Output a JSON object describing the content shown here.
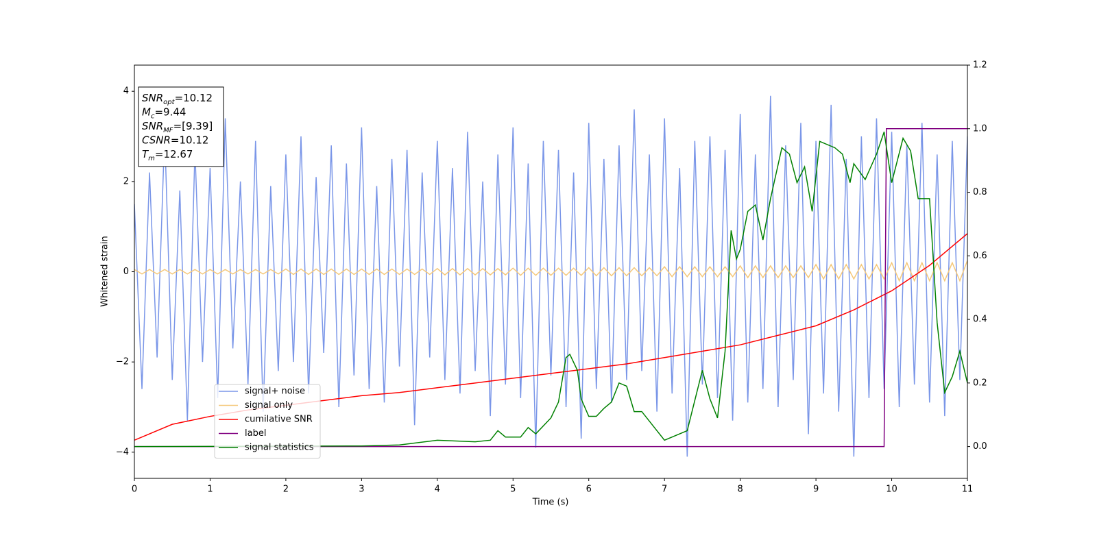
{
  "chart_data": {
    "type": "line",
    "xlabel": "Time (s)",
    "ylabel": "Whitened strain",
    "xlim": [
      0,
      11
    ],
    "xticks": [
      0,
      1,
      2,
      3,
      4,
      5,
      6,
      7,
      8,
      9,
      10,
      11
    ],
    "ylim": [
      -4.58,
      4.58
    ],
    "yticks": [
      {
        "value": -4,
        "label": "−4"
      },
      {
        "value": -2,
        "label": "−2"
      },
      0,
      2,
      4
    ],
    "y2lim": [
      -0.1,
      1.2
    ],
    "y2ticks": [
      {
        "value": 0,
        "label": "0.0"
      },
      {
        "value": 0.2,
        "label": "0.2"
      },
      {
        "value": 0.4,
        "label": "0.4"
      },
      {
        "value": 0.6,
        "label": "0.6"
      },
      {
        "value": 0.8,
        "label": "0.8"
      },
      {
        "value": 1,
        "label": "1.0"
      },
      {
        "value": 1.2,
        "label": "1.2"
      }
    ],
    "legend": "lower left",
    "annotations": [
      {
        "name": "SNR",
        "sub": "opt",
        "text": "=10.12"
      },
      {
        "name": "M",
        "sub": "c",
        "text": "=9.44"
      },
      {
        "name": "SNR",
        "sub": "MF",
        "text": "=[9.39]"
      },
      {
        "name": "CSNR",
        "text": "=10.12"
      },
      {
        "name": "T",
        "sub": "m",
        "text": "=12.67"
      }
    ],
    "x": [
      0,
      0.1,
      0.2,
      0.3,
      0.4,
      0.5,
      0.6,
      0.7,
      0.8,
      0.9,
      1,
      1.1,
      1.2,
      1.3,
      1.4,
      1.5,
      1.6,
      1.7,
      1.8,
      1.9,
      2,
      2.1,
      2.2,
      2.3,
      2.4,
      2.5,
      2.6,
      2.7,
      2.8,
      2.9,
      3,
      3.1,
      3.2,
      3.3,
      3.4,
      3.5,
      3.6,
      3.7,
      3.8,
      3.9,
      4,
      4.1,
      4.2,
      4.3,
      4.4,
      4.5,
      4.6,
      4.7,
      4.8,
      4.9,
      5,
      5.1,
      5.2,
      5.3,
      5.4,
      5.5,
      5.6,
      5.7,
      5.8,
      5.9,
      6,
      6.1,
      6.2,
      6.3,
      6.4,
      6.5,
      6.6,
      6.7,
      6.8,
      6.9,
      7,
      7.1,
      7.2,
      7.3,
      7.4,
      7.5,
      7.6,
      7.7,
      7.8,
      7.9,
      8,
      8.1,
      8.2,
      8.3,
      8.4,
      8.5,
      8.6,
      8.7,
      8.8,
      8.9,
      9,
      9.1,
      9.2,
      9.3,
      9.4,
      9.5,
      9.6,
      9.7,
      9.8,
      9.9,
      10,
      10.1,
      10.2,
      10.3,
      10.4,
      10.5,
      10.6,
      10.7,
      10.8,
      10.9,
      11
    ],
    "series": [
      {
        "name": "signal+ noise",
        "color": "#7a96e8",
        "axis": "y",
        "values": [
          1.5,
          -2.6,
          2.2,
          -1.9,
          3.1,
          -2.4,
          1.8,
          -3.3,
          2.7,
          -2.0,
          2.3,
          -2.8,
          3.4,
          -1.7,
          2.0,
          -2.5,
          2.9,
          -3.1,
          1.9,
          -2.2,
          2.6,
          -2.0,
          3.0,
          -2.7,
          2.1,
          -1.8,
          2.8,
          -3.0,
          2.4,
          -2.3,
          3.2,
          -2.6,
          1.9,
          -2.9,
          2.5,
          -2.1,
          2.7,
          -3.4,
          2.2,
          -1.9,
          2.9,
          -2.4,
          2.3,
          -2.7,
          3.1,
          -2.2,
          2.0,
          -3.2,
          2.6,
          -2.5,
          3.2,
          -2.8,
          2.4,
          -3.9,
          2.9,
          -2.3,
          2.7,
          -3.0,
          2.2,
          -3.7,
          3.3,
          -2.6,
          2.5,
          -2.9,
          2.8,
          -2.4,
          3.6,
          -2.2,
          2.6,
          -3.1,
          3.4,
          -2.7,
          2.3,
          -4.1,
          2.9,
          -2.5,
          3.0,
          -2.8,
          2.7,
          -3.3,
          3.5,
          -2.9,
          2.6,
          -2.6,
          3.9,
          -3.0,
          2.8,
          -2.4,
          3.3,
          -3.6,
          2.9,
          -2.7,
          3.7,
          -3.1,
          2.5,
          -4.1,
          3.0,
          -2.8,
          3.4,
          -2.6,
          3.1,
          -3.0,
          2.8,
          -2.5,
          3.3,
          -2.9,
          2.6,
          -3.2,
          2.9,
          -2.4,
          3.0
        ]
      },
      {
        "name": "signal only",
        "color": "#f5c87a",
        "axis": "y",
        "values": [
          0.05,
          -0.05,
          0.05,
          -0.05,
          0.05,
          -0.05,
          0.05,
          -0.05,
          0.05,
          -0.05,
          0.05,
          -0.05,
          0.05,
          -0.05,
          0.05,
          -0.05,
          0.05,
          -0.05,
          0.05,
          -0.05,
          0.06,
          -0.06,
          0.06,
          -0.06,
          0.06,
          -0.06,
          0.06,
          -0.06,
          0.06,
          -0.06,
          0.06,
          -0.06,
          0.06,
          -0.06,
          0.06,
          -0.06,
          0.06,
          -0.06,
          0.06,
          -0.06,
          0.07,
          -0.07,
          0.07,
          -0.07,
          0.07,
          -0.07,
          0.07,
          -0.07,
          0.07,
          -0.07,
          0.08,
          -0.08,
          0.08,
          -0.08,
          0.08,
          -0.08,
          0.08,
          -0.08,
          0.08,
          -0.08,
          0.09,
          -0.09,
          0.09,
          -0.09,
          0.09,
          -0.09,
          0.09,
          -0.09,
          0.09,
          -0.09,
          0.11,
          -0.11,
          0.11,
          -0.11,
          0.11,
          -0.11,
          0.11,
          -0.11,
          0.11,
          -0.11,
          0.13,
          -0.13,
          0.13,
          -0.13,
          0.13,
          -0.13,
          0.13,
          -0.13,
          0.13,
          -0.13,
          0.16,
          -0.16,
          0.16,
          -0.16,
          0.16,
          -0.16,
          0.16,
          -0.16,
          0.16,
          -0.16,
          0.2,
          -0.2,
          0.2,
          -0.2,
          0.2,
          -0.2,
          0.2,
          -0.2,
          0.2,
          -0.2,
          0.25
        ]
      },
      {
        "name": "cumilative SNR",
        "color": "#ff0000",
        "axis": "y2",
        "x": [
          0,
          0.5,
          1,
          1.5,
          2,
          2.5,
          3,
          3.5,
          4,
          4.5,
          5,
          5.5,
          6,
          6.5,
          7,
          7.5,
          8,
          8.5,
          9,
          9.5,
          10,
          10.5,
          11
        ],
        "values": [
          0.02,
          0.07,
          0.095,
          0.115,
          0.13,
          0.145,
          0.16,
          0.17,
          0.185,
          0.2,
          0.215,
          0.23,
          0.245,
          0.26,
          0.28,
          0.3,
          0.32,
          0.35,
          0.38,
          0.43,
          0.49,
          0.57,
          0.67
        ]
      },
      {
        "name": "label",
        "color": "#800080",
        "axis": "y2",
        "x": [
          0,
          9.9,
          9.93,
          11
        ],
        "values": [
          0,
          0,
          1,
          1
        ]
      },
      {
        "name": "signal statistics",
        "color": "#008000",
        "axis": "y2",
        "x": [
          0,
          3,
          3.5,
          4,
          4.5,
          4.7,
          4.8,
          4.9,
          5.1,
          5.2,
          5.3,
          5.5,
          5.6,
          5.7,
          5.75,
          5.85,
          5.9,
          6,
          6.1,
          6.2,
          6.3,
          6.4,
          6.5,
          6.6,
          6.7,
          6.9,
          7,
          7.3,
          7.5,
          7.6,
          7.7,
          7.8,
          7.88,
          7.95,
          8,
          8.1,
          8.2,
          8.3,
          8.4,
          8.55,
          8.65,
          8.75,
          8.85,
          8.95,
          9.05,
          9.25,
          9.35,
          9.45,
          9.5,
          9.65,
          9.8,
          9.9,
          10,
          10.15,
          10.25,
          10.35,
          10.5,
          10.6,
          10.7,
          10.8,
          10.9,
          11
        ],
        "values": [
          0,
          0.002,
          0.005,
          0.02,
          0.015,
          0.02,
          0.05,
          0.03,
          0.03,
          0.06,
          0.04,
          0.09,
          0.14,
          0.28,
          0.29,
          0.24,
          0.15,
          0.095,
          0.095,
          0.12,
          0.14,
          0.2,
          0.19,
          0.11,
          0.11,
          0.05,
          0.02,
          0.05,
          0.24,
          0.15,
          0.09,
          0.3,
          0.68,
          0.59,
          0.62,
          0.74,
          0.76,
          0.65,
          0.78,
          0.94,
          0.92,
          0.83,
          0.88,
          0.74,
          0.96,
          0.94,
          0.92,
          0.83,
          0.89,
          0.84,
          0.92,
          0.99,
          0.83,
          0.97,
          0.93,
          0.78,
          0.78,
          0.39,
          0.17,
          0.22,
          0.3,
          0.2
        ]
      }
    ]
  }
}
